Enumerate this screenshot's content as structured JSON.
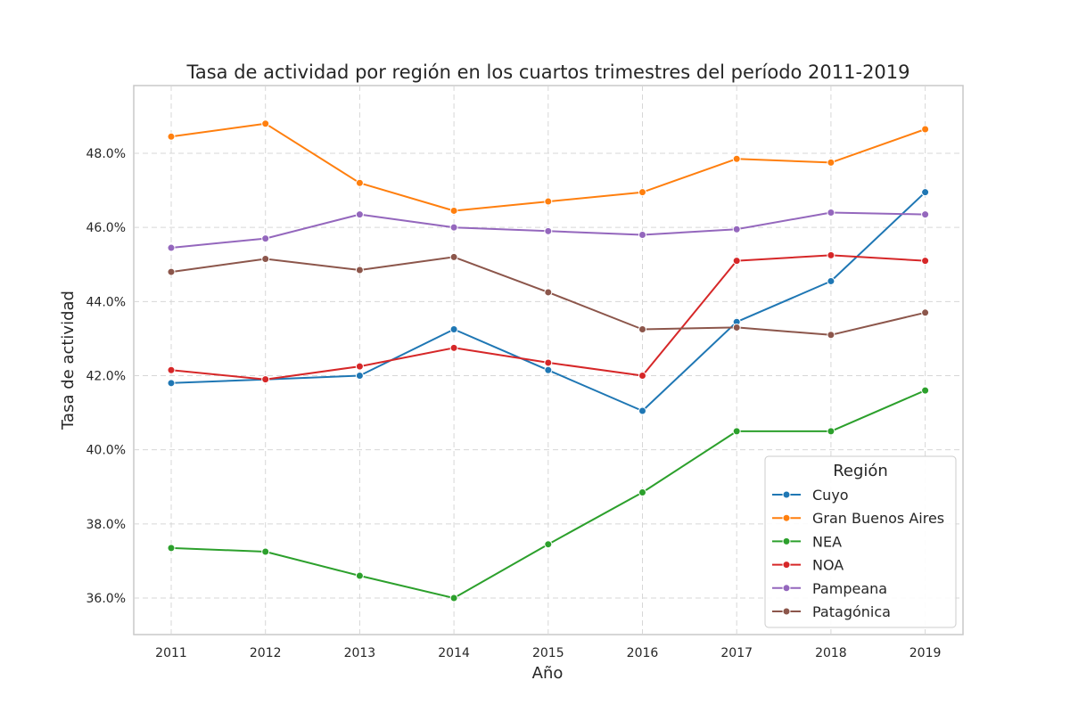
{
  "chart_data": {
    "type": "line",
    "title": "Tasa de actividad por región en los cuartos trimestres del período 2011-2019",
    "xlabel": "Año",
    "ylabel": "Tasa de actividad",
    "x": [
      2011,
      2012,
      2013,
      2014,
      2015,
      2016,
      2017,
      2018,
      2019
    ],
    "ylim": [
      35.0,
      49.8
    ],
    "yticks": [
      36.0,
      38.0,
      40.0,
      42.0,
      44.0,
      46.0,
      48.0
    ],
    "ytick_labels": [
      "36.0%",
      "38.0%",
      "40.0%",
      "42.0%",
      "44.0%",
      "46.0%",
      "48.0%"
    ],
    "grid": true,
    "legend": {
      "title": "Región",
      "placement": "lower-right"
    },
    "series": [
      {
        "name": "Cuyo",
        "color": "#1f77b4",
        "values": [
          41.8,
          41.9,
          42.0,
          43.25,
          42.15,
          41.05,
          43.45,
          44.55,
          46.95
        ]
      },
      {
        "name": "Gran Buenos Aires",
        "color": "#ff7f0e",
        "values": [
          48.45,
          48.8,
          47.2,
          46.45,
          46.7,
          46.95,
          47.85,
          47.75,
          48.65
        ]
      },
      {
        "name": "NEA",
        "color": "#2ca02c",
        "values": [
          37.35,
          37.25,
          36.6,
          36.0,
          37.45,
          38.85,
          40.5,
          40.5,
          41.6
        ]
      },
      {
        "name": "NOA",
        "color": "#d62728",
        "values": [
          42.15,
          41.9,
          42.25,
          42.75,
          42.35,
          42.0,
          45.1,
          45.25,
          45.1
        ]
      },
      {
        "name": "Pampeana",
        "color": "#9467bd",
        "values": [
          45.45,
          45.7,
          46.35,
          46.0,
          45.9,
          45.8,
          45.95,
          46.4,
          46.35
        ]
      },
      {
        "name": "Patagónica",
        "color": "#8c564b",
        "values": [
          44.8,
          45.15,
          44.85,
          45.2,
          44.25,
          43.25,
          43.3,
          43.1,
          43.7
        ]
      }
    ]
  }
}
